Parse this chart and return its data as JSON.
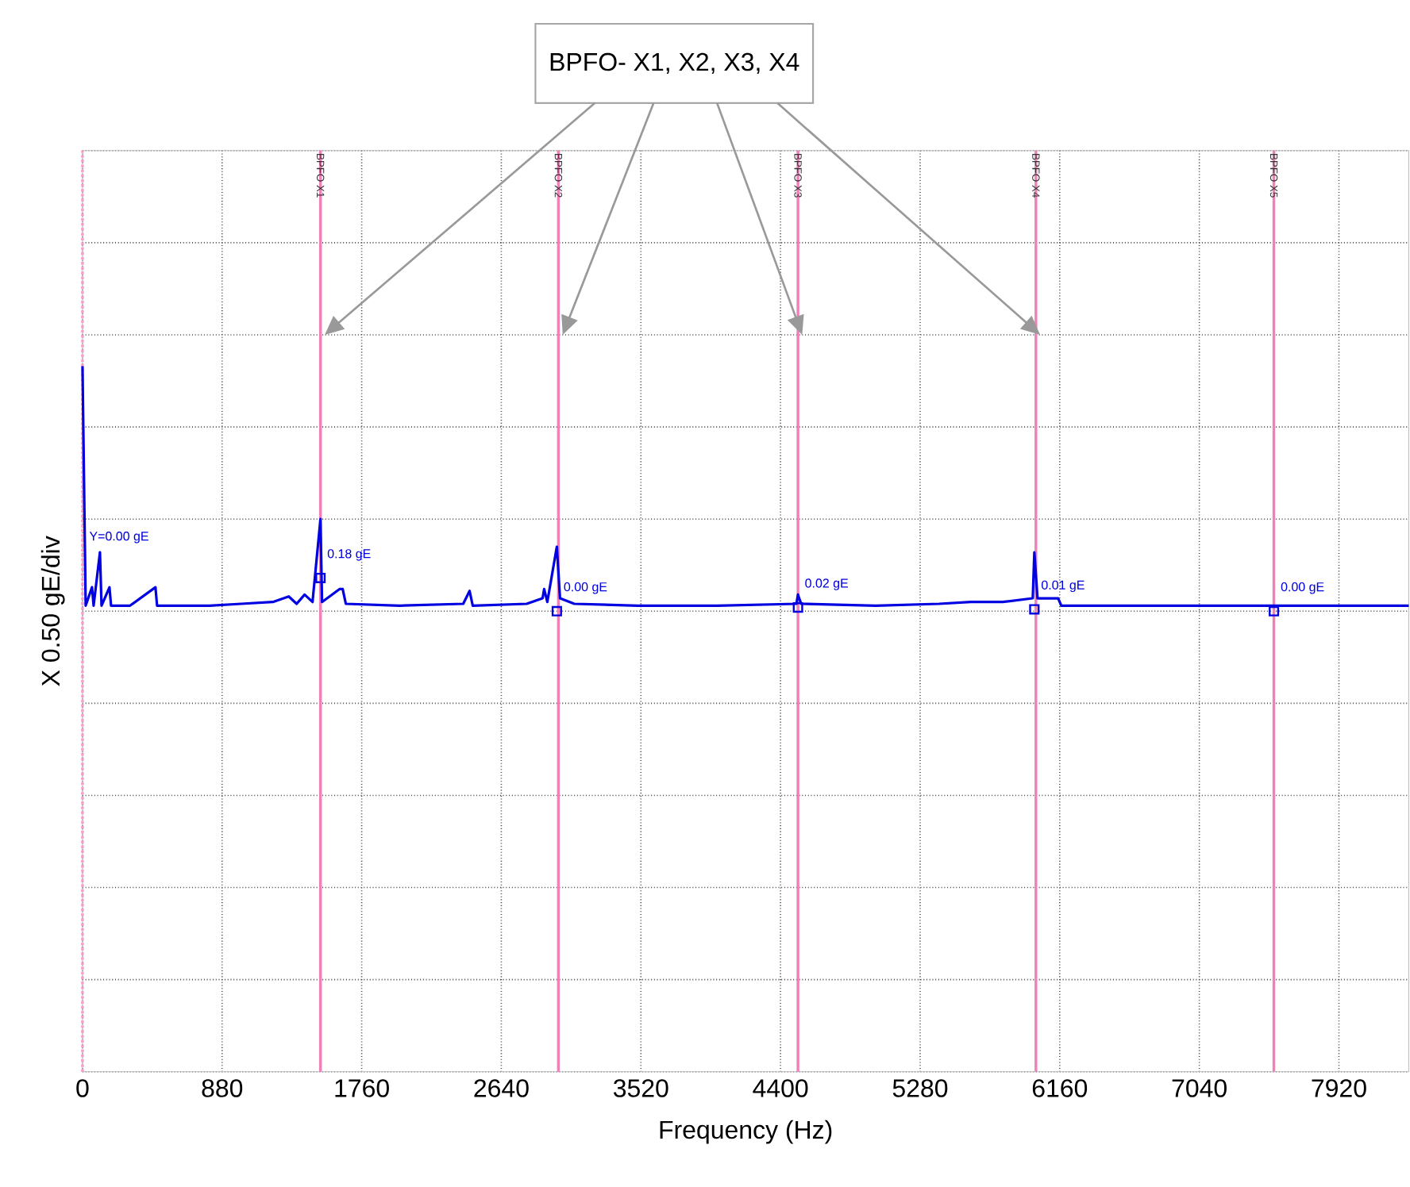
{
  "chart_data": {
    "type": "line",
    "xlabel": "Frequency (Hz)",
    "ylabel": "X 0.50 gE/div",
    "xlim": [
      0,
      8360
    ],
    "xticks": [
      0,
      880,
      1760,
      2640,
      3520,
      4400,
      5280,
      6160,
      7040,
      7920
    ],
    "ylim": [
      -2.5,
      2.5
    ],
    "yticks": [
      {
        "value": -2.5,
        "label": null
      },
      {
        "value": -2,
        "label": null
      },
      {
        "value": -1.5,
        "label": null
      },
      {
        "value": -1,
        "label": null
      },
      {
        "value": -0.5,
        "label": null
      },
      {
        "value": 0,
        "label": null
      },
      {
        "value": 0.5,
        "label": null
      },
      {
        "value": 1,
        "label": null
      },
      {
        "value": 1.5,
        "label": null
      },
      {
        "value": 2,
        "label": null
      },
      {
        "value": 2.5,
        "label": null
      }
    ],
    "grid": true,
    "tick_labels": "x",
    "annotations": [
      "BPFO- X1, X2, X3, X4",
      "Y=0.00 gE"
    ],
    "ref_lines": [
      {
        "axis": "x",
        "value": 0,
        "color": "#f4a0c8",
        "line_style": "dotted"
      },
      {
        "axis": "x",
        "value": 1500,
        "label": "BPFO X1",
        "color": "#f080b8"
      },
      {
        "axis": "x",
        "value": 3000,
        "label": "BPFO X2",
        "color": "#f080b8"
      },
      {
        "axis": "x",
        "value": 4510,
        "label": "BPFO X3",
        "color": "#f080b8"
      },
      {
        "axis": "x",
        "value": 6010,
        "label": "BPFO X4",
        "color": "#f080b8"
      },
      {
        "axis": "x",
        "value": 7510,
        "label": "BPFO X5",
        "color": "#f080b8"
      }
    ],
    "series": [
      {
        "color": "#0000e0",
        "x": [
          0,
          20,
          60,
          70,
          110,
          120,
          170,
          180,
          300,
          460,
          470,
          800,
          1000,
          1200,
          1300,
          1350,
          1400,
          1450,
          1500,
          1510,
          1620,
          1640,
          1660,
          2000,
          2400,
          2440,
          2460,
          2800,
          2900,
          2910,
          2930,
          2990,
          3010,
          3100,
          3500,
          4000,
          4500,
          4510,
          4530,
          5000,
          5400,
          5600,
          5800,
          5990,
          6000,
          6020,
          6150,
          6170,
          6500,
          7500,
          7510,
          8000,
          8360
        ],
        "values": [
          1.33,
          0.03,
          0.13,
          0.03,
          0.32,
          0.03,
          0.13,
          0.03,
          0.03,
          0.13,
          0.03,
          0.03,
          0.04,
          0.05,
          0.08,
          0.04,
          0.09,
          0.05,
          0.5,
          0.05,
          0.12,
          0.12,
          0.04,
          0.03,
          0.04,
          0.11,
          0.03,
          0.04,
          0.07,
          0.12,
          0.05,
          0.35,
          0.07,
          0.04,
          0.03,
          0.03,
          0.04,
          0.09,
          0.04,
          0.03,
          0.04,
          0.05,
          0.05,
          0.07,
          0.32,
          0.07,
          0.07,
          0.03,
          0.03,
          0.03,
          0.03,
          0.03,
          0.03
        ]
      },
      {
        "type": "scatter",
        "marker": "square",
        "color": "#0000e0",
        "x": [
          1500,
          2990,
          4510,
          6000,
          7510
        ],
        "values": [
          0.18,
          0.0,
          0.02,
          0.01,
          0.0
        ],
        "value_labels": [
          "0.18 gE",
          "0.00 gE",
          "0.02 gE",
          "0.01 gE",
          "0.00 gE"
        ]
      }
    ]
  }
}
